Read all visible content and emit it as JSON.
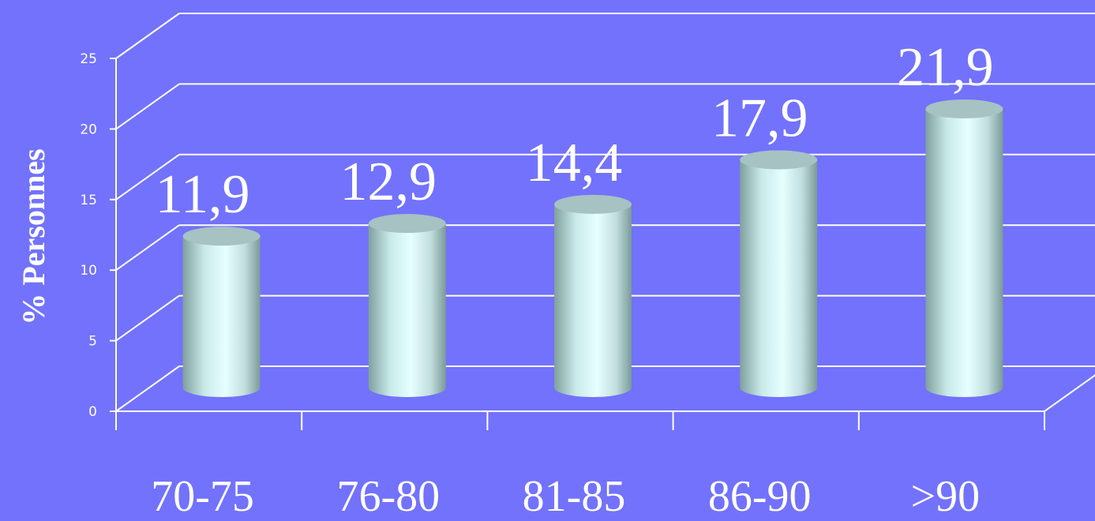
{
  "chart_data": {
    "type": "bar",
    "categories": [
      "70-75",
      "76-80",
      "81-85",
      "86-90",
      ">90"
    ],
    "values": [
      11.9,
      12.9,
      14.4,
      17.9,
      21.9
    ],
    "value_labels": [
      "11,9",
      "12,9",
      "14,4",
      "17,9",
      "21,9"
    ],
    "ylabel": "% Personnes",
    "ylim": [
      0,
      25
    ],
    "yticks": [
      0,
      5,
      10,
      15,
      20,
      25
    ],
    "grid": true,
    "legend": "none"
  },
  "colors": {
    "background": "#7272fc",
    "gridline": "#ffffff",
    "bar_light": "#e4ffff",
    "bar_dark": "#7fa09e",
    "bar_top": "#a6c2c2"
  }
}
